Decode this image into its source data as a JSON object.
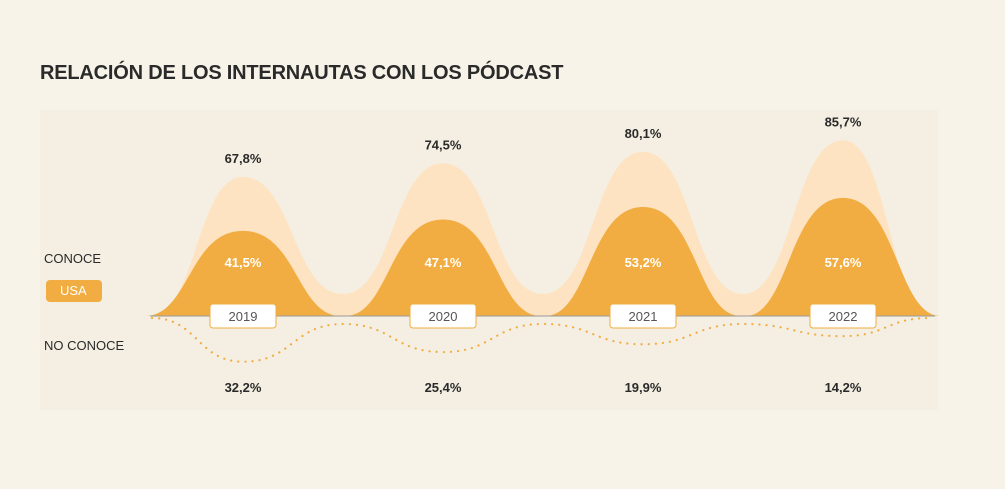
{
  "title": "RELACIÓN DE LOS INTERNAUTAS CON LOS PÓDCAST",
  "legend": {
    "conoce_label": "CONOCE",
    "country_badge": "USA",
    "no_conoce_label": "NO CONOCE"
  },
  "colors": {
    "background": "#f7f3e8",
    "light_area": "#fde3c1",
    "dark_area": "#f2ad42",
    "dotted": "#f2ad42",
    "baseline": "#9a9a9a"
  },
  "chart_data": {
    "type": "area",
    "title": "RELACIÓN DE LOS INTERNAUTAS CON LOS PÓDCAST",
    "categories": [
      "2019",
      "2020",
      "2021",
      "2022"
    ],
    "series": [
      {
        "values": [
          67.8,
          74.5,
          80.1,
          85.7
        ],
        "labels": [
          "67,8%",
          "74,5%",
          "80,1%",
          "85,7%"
        ],
        "style": "light-area"
      },
      {
        "values": [
          41.5,
          47.1,
          53.2,
          57.6
        ],
        "labels": [
          "41,5%",
          "47,1%",
          "53,2%",
          "57,6%"
        ],
        "style": "dark-area"
      },
      {
        "values": [
          32.2,
          25.4,
          19.9,
          14.2
        ],
        "labels": [
          "32,2%",
          "25,4%",
          "19,9%",
          "14,2%"
        ],
        "style": "dotted-below-axis"
      }
    ],
    "grid": false
  }
}
